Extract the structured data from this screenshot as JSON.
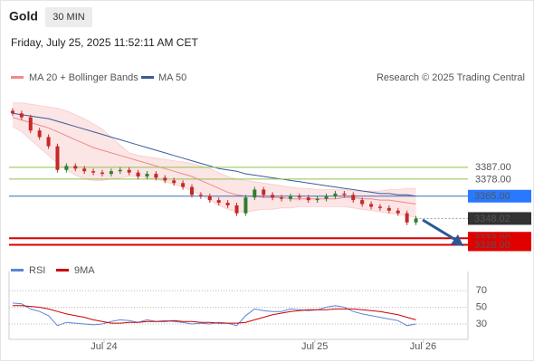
{
  "header": {
    "title": "Gold",
    "timeframe": "30 MIN",
    "date": "Friday, July 25, 2025 11:52:11 AM CET",
    "source": "Research © 2025 Trading Central"
  },
  "chart_data": [
    {
      "type": "candlestick",
      "open": [
        3430,
        3428,
        3425,
        3415,
        3410,
        3403,
        3385,
        3388,
        3386,
        3384,
        3383,
        3382,
        3384,
        3385,
        3383,
        3380,
        3382,
        3379,
        3377,
        3375,
        3372,
        3366,
        3365,
        3362,
        3360,
        3358,
        3352,
        3364,
        3370,
        3366,
        3364,
        3363,
        3365,
        3364,
        3362,
        3363,
        3365,
        3367,
        3366,
        3362,
        3359,
        3357,
        3356,
        3354,
        3352,
        3345
      ],
      "high": [
        3432,
        3430,
        3427,
        3417,
        3412,
        3405,
        3390,
        3390,
        3388,
        3386,
        3385,
        3386,
        3387,
        3387,
        3385,
        3384,
        3384,
        3381,
        3379,
        3377,
        3374,
        3368,
        3367,
        3364,
        3362,
        3360,
        3366,
        3372,
        3372,
        3368,
        3366,
        3367,
        3367,
        3366,
        3365,
        3367,
        3369,
        3369,
        3368,
        3364,
        3361,
        3359,
        3358,
        3356,
        3354,
        3350
      ],
      "low": [
        3426,
        3423,
        3413,
        3408,
        3401,
        3383,
        3383,
        3384,
        3382,
        3381,
        3380,
        3380,
        3382,
        3381,
        3378,
        3378,
        3377,
        3375,
        3373,
        3370,
        3364,
        3363,
        3360,
        3358,
        3356,
        3350,
        3350,
        3362,
        3364,
        3362,
        3361,
        3361,
        3362,
        3360,
        3360,
        3361,
        3363,
        3364,
        3360,
        3357,
        3355,
        3354,
        3352,
        3350,
        3343,
        3343
      ],
      "close": [
        3428,
        3425,
        3415,
        3410,
        3403,
        3385,
        3388,
        3386,
        3384,
        3383,
        3382,
        3384,
        3385,
        3383,
        3380,
        3382,
        3379,
        3377,
        3375,
        3372,
        3366,
        3365,
        3362,
        3360,
        3358,
        3352,
        3364,
        3370,
        3366,
        3364,
        3363,
        3365,
        3364,
        3362,
        3363,
        3365,
        3367,
        3366,
        3362,
        3359,
        3357,
        3356,
        3354,
        3352,
        3345,
        3348
      ],
      "up_color": "#2e7d32",
      "down_color": "#c62828",
      "series": [
        {
          "name": "MA 20 + Bollinger Bands",
          "color": "#f08a8a",
          "values": [
            3425,
            3423,
            3421,
            3419,
            3417,
            3414,
            3411,
            3408,
            3405,
            3402,
            3400,
            3398,
            3396,
            3394,
            3392,
            3390,
            3388,
            3386,
            3384,
            3382,
            3380,
            3377,
            3374,
            3371,
            3368,
            3366,
            3365,
            3365,
            3364,
            3364,
            3364,
            3363,
            3363,
            3363,
            3363,
            3363,
            3363,
            3364,
            3364,
            3363,
            3363,
            3362,
            3362,
            3361,
            3360,
            3359
          ],
          "upper": [
            3436,
            3436,
            3435,
            3434,
            3433,
            3432,
            3430,
            3427,
            3424,
            3420,
            3416,
            3410,
            3404,
            3398,
            3396,
            3395,
            3394,
            3393,
            3392,
            3391,
            3390,
            3388,
            3386,
            3383,
            3380,
            3378,
            3377,
            3376,
            3375,
            3374,
            3373,
            3372,
            3371,
            3371,
            3370,
            3370,
            3370,
            3370,
            3369,
            3369,
            3369,
            3369,
            3370,
            3370,
            3371,
            3371
          ],
          "lower": [
            3418,
            3414,
            3408,
            3402,
            3396,
            3390,
            3385,
            3381,
            3378,
            3377,
            3377,
            3378,
            3379,
            3380,
            3380,
            3379,
            3378,
            3376,
            3374,
            3372,
            3369,
            3366,
            3362,
            3358,
            3355,
            3353,
            3353,
            3354,
            3355,
            3355,
            3356,
            3356,
            3357,
            3357,
            3357,
            3357,
            3357,
            3357,
            3356,
            3355,
            3354,
            3353,
            3352,
            3351,
            3350,
            3349
          ]
        },
        {
          "name": "MA 50",
          "color": "#3b5a9a",
          "values": [
            3428,
            3427,
            3426,
            3425,
            3424,
            3422,
            3420,
            3418,
            3416,
            3414,
            3412,
            3410,
            3408,
            3406,
            3404,
            3402,
            3400,
            3398,
            3396,
            3394,
            3392,
            3390,
            3388,
            3386,
            3385,
            3384,
            3382,
            3381,
            3380,
            3379,
            3378,
            3377,
            3376,
            3375,
            3374,
            3373,
            3372,
            3371,
            3370,
            3369,
            3368,
            3367,
            3367,
            3366,
            3366,
            3365
          ]
        }
      ],
      "levels": [
        {
          "value": 3387,
          "label": "3387.00",
          "color": "#8bc34a",
          "text_color": "#5c9a1b",
          "box": false
        },
        {
          "value": 3378,
          "label": "3378.00",
          "color": "#8bc34a",
          "text_color": "#5c9a1b",
          "box": false
        },
        {
          "value": 3365,
          "label": "3365.00",
          "color": "#3b6fb6",
          "text_color": "#ffffff",
          "box": "#2979ff"
        },
        {
          "value": 3348.02,
          "label": "3348.02",
          "color": "#999999",
          "text_color": "#ffffff",
          "box": "#333333",
          "dotted": true
        },
        {
          "value": 3333,
          "label": "3333.00",
          "color": "#d50000",
          "text_color": "#ffffff",
          "box": "#e00000"
        },
        {
          "value": 3328,
          "label": "3328.00",
          "color": "#d50000",
          "text_color": "#ffffff",
          "box": "#e00000"
        }
      ],
      "xlim": [
        -0.4,
        50.8
      ],
      "ylim": [
        3318,
        3442
      ]
    },
    {
      "type": "line",
      "series": [
        {
          "name": "RSI",
          "color": "#5b85d6",
          "values": [
            55,
            54,
            48,
            45,
            40,
            28,
            32,
            31,
            30,
            29,
            30,
            33,
            35,
            34,
            32,
            35,
            33,
            34,
            33,
            32,
            30,
            31,
            30,
            32,
            31,
            28,
            40,
            48,
            46,
            45,
            45,
            48,
            47,
            46,
            47,
            50,
            52,
            50,
            45,
            42,
            40,
            38,
            36,
            34,
            28,
            30
          ]
        },
        {
          "name": "9MA",
          "color": "#cc0000",
          "values": [
            52,
            52,
            51,
            50,
            48,
            45,
            42,
            40,
            38,
            35,
            33,
            31,
            31,
            32,
            32,
            33,
            33,
            33,
            34,
            33,
            33,
            32,
            32,
            31,
            31,
            31,
            32,
            35,
            38,
            41,
            43,
            45,
            46,
            47,
            47,
            47,
            48,
            48,
            48,
            47,
            46,
            45,
            43,
            41,
            38,
            35
          ]
        }
      ],
      "xlim": [
        -0.4,
        50.8
      ],
      "ylim": [
        17,
        82
      ],
      "yticks": [
        30,
        50,
        70
      ],
      "xticks": [
        {
          "value": 10.2,
          "label": "Jul 24"
        },
        {
          "value": 33.7,
          "label": "Jul 25"
        },
        {
          "value": 45.8,
          "label": "Jul 26"
        }
      ]
    }
  ]
}
